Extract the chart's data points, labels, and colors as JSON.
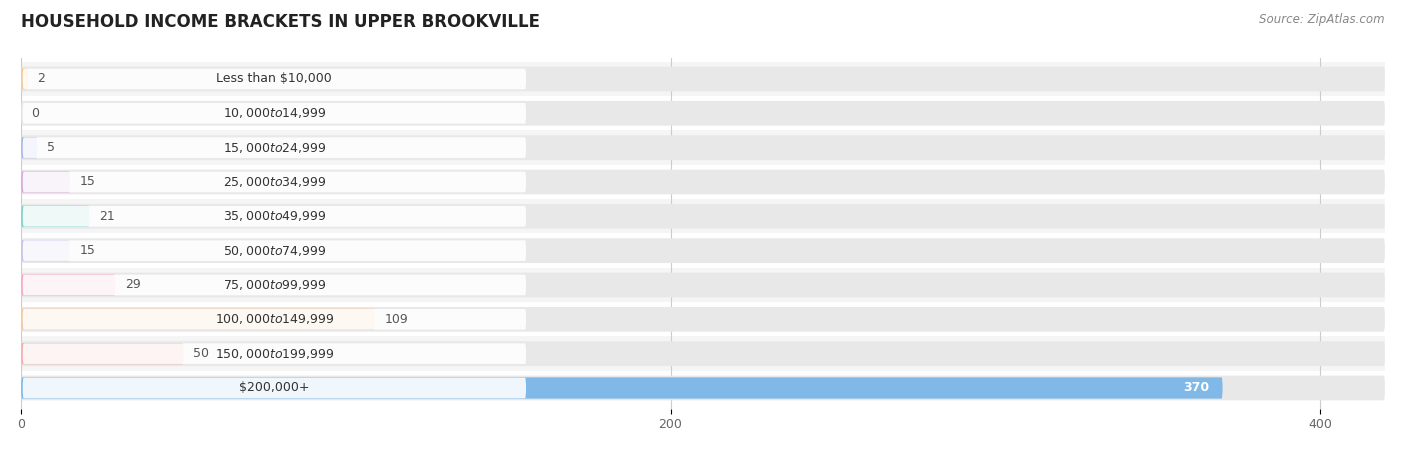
{
  "title": "HOUSEHOLD INCOME BRACKETS IN UPPER BROOKVILLE",
  "source": "Source: ZipAtlas.com",
  "categories": [
    "Less than $10,000",
    "$10,000 to $14,999",
    "$15,000 to $24,999",
    "$25,000 to $34,999",
    "$35,000 to $49,999",
    "$50,000 to $74,999",
    "$75,000 to $99,999",
    "$100,000 to $149,999",
    "$150,000 to $199,999",
    "$200,000+"
  ],
  "values": [
    2,
    0,
    5,
    15,
    21,
    15,
    29,
    109,
    50,
    370
  ],
  "bar_colors": [
    "#F5C89A",
    "#F5A0A0",
    "#A8B8E8",
    "#D4A8D8",
    "#7ECFC8",
    "#C8C0E8",
    "#F5A8C0",
    "#F5C89A",
    "#F5A8A8",
    "#80B8E8"
  ],
  "bg_row_colors": [
    "#F5F5F5",
    "#FFFFFF"
  ],
  "track_color": "#E8E8E8",
  "xlim_max": 420,
  "xticks": [
    0,
    200,
    400
  ],
  "title_fontsize": 12,
  "label_fontsize": 9,
  "value_fontsize": 9,
  "source_fontsize": 8.5,
  "background_color": "#FFFFFF",
  "grid_color": "#CCCCCC",
  "value_label_inside_index": 9,
  "value_label_color_inside": "#FFFFFF",
  "value_label_color_outside": "#555555"
}
